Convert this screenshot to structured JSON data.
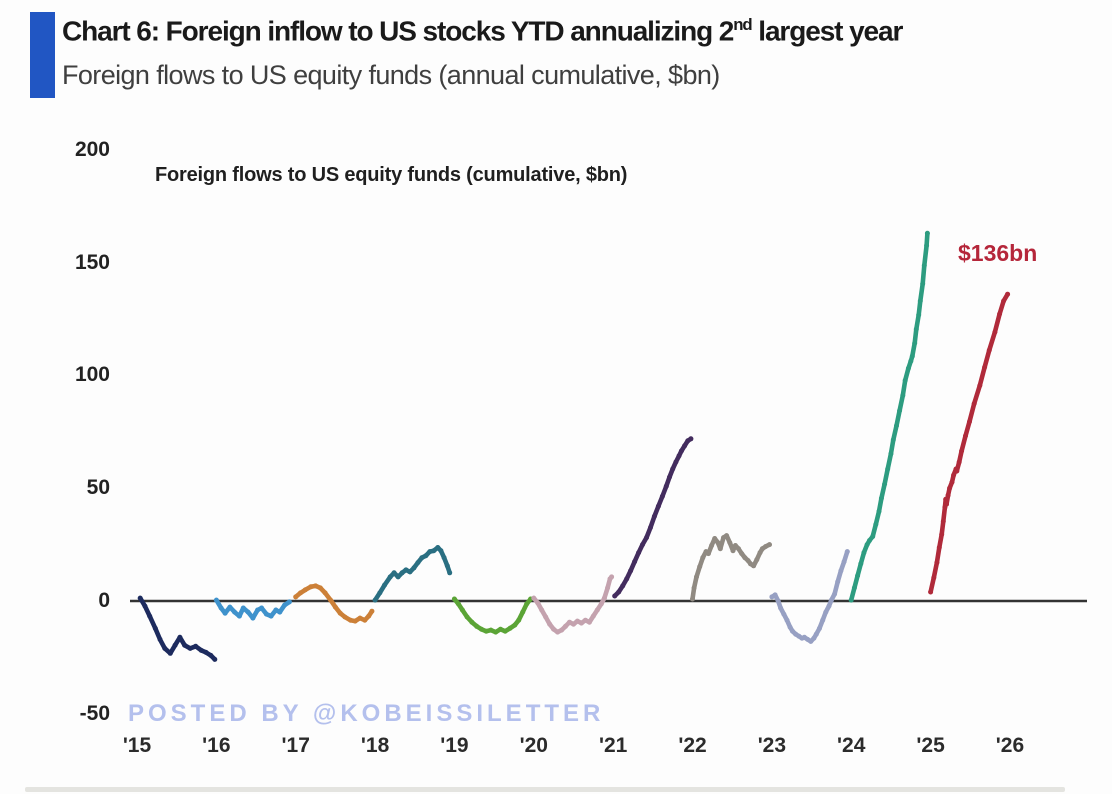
{
  "header": {
    "title_prefix": "Chart 6: Foreign inflow to US stocks YTD annualizing 2",
    "title_sup": "nd",
    "title_suffix": " largest year",
    "subtitle": "Foreign flows to US equity funds (annual cumulative, $bn)",
    "accent_color": "#2156c3"
  },
  "watermark": {
    "text": "POSTED BY @KOBEISSILETTER",
    "color": "#b4c0ed"
  },
  "chart_data": {
    "type": "line",
    "title": "Foreign flows to US equity funds (cumulative, $bn)",
    "xlabel": "",
    "ylabel": "",
    "ylim": [
      -50,
      200
    ],
    "yticks": [
      200,
      150,
      100,
      50,
      0,
      -50
    ],
    "x_tick_labels": [
      "'15",
      "'16",
      "'17",
      "'18",
      "'19",
      "'20",
      "'21",
      "'22",
      "'23",
      "'24",
      "'25",
      "'26"
    ],
    "grid": false,
    "legend_position": "none",
    "axis_line_color": "#333333",
    "annotation": {
      "text": "$136bn",
      "color": "#b5263a",
      "series": "2025"
    },
    "series": [
      {
        "name": "2015",
        "year": 2015,
        "color": "#1d2b5e",
        "points": [
          [
            0.04,
            1.3
          ],
          [
            0.1,
            -2.2
          ],
          [
            0.16,
            -6.7
          ],
          [
            0.23,
            -12.1
          ],
          [
            0.29,
            -17.0
          ],
          [
            0.35,
            -21.0
          ],
          [
            0.42,
            -23.2
          ],
          [
            0.48,
            -19.6
          ],
          [
            0.54,
            -16.1
          ],
          [
            0.6,
            -19.6
          ],
          [
            0.67,
            -21.0
          ],
          [
            0.74,
            -20.1
          ],
          [
            0.81,
            -21.9
          ],
          [
            0.87,
            -22.8
          ],
          [
            0.93,
            -24.1
          ],
          [
            0.98,
            -25.9
          ]
        ]
      },
      {
        "name": "2016",
        "year": 2016,
        "color": "#3f92cc",
        "points": [
          [
            0.0,
            0.4
          ],
          [
            0.06,
            -3.1
          ],
          [
            0.11,
            -5.4
          ],
          [
            0.17,
            -2.7
          ],
          [
            0.23,
            -4.9
          ],
          [
            0.29,
            -6.7
          ],
          [
            0.34,
            -3.1
          ],
          [
            0.4,
            -4.9
          ],
          [
            0.46,
            -7.6
          ],
          [
            0.52,
            -4.0
          ],
          [
            0.57,
            -3.1
          ],
          [
            0.63,
            -5.8
          ],
          [
            0.69,
            -6.7
          ],
          [
            0.75,
            -4.0
          ],
          [
            0.8,
            -4.9
          ],
          [
            0.86,
            -1.8
          ],
          [
            0.92,
            -0.4
          ]
        ]
      },
      {
        "name": "2017",
        "year": 2017,
        "color": "#cc8038",
        "points": [
          [
            0.0,
            1.8
          ],
          [
            0.06,
            3.6
          ],
          [
            0.12,
            4.9
          ],
          [
            0.19,
            6.3
          ],
          [
            0.25,
            6.7
          ],
          [
            0.31,
            5.8
          ],
          [
            0.37,
            3.6
          ],
          [
            0.44,
            0.4
          ],
          [
            0.5,
            -2.7
          ],
          [
            0.56,
            -5.4
          ],
          [
            0.62,
            -7.1
          ],
          [
            0.69,
            -8.5
          ],
          [
            0.75,
            -8.9
          ],
          [
            0.81,
            -7.6
          ],
          [
            0.87,
            -8.5
          ],
          [
            0.92,
            -6.7
          ],
          [
            0.96,
            -4.5
          ]
        ]
      },
      {
        "name": "2018",
        "year": 2018,
        "color": "#2a6f82",
        "points": [
          [
            0.0,
            0.4
          ],
          [
            0.06,
            3.6
          ],
          [
            0.12,
            7.1
          ],
          [
            0.19,
            10.7
          ],
          [
            0.24,
            12.5
          ],
          [
            0.29,
            10.7
          ],
          [
            0.34,
            12.5
          ],
          [
            0.39,
            13.8
          ],
          [
            0.44,
            12.9
          ],
          [
            0.49,
            14.7
          ],
          [
            0.54,
            17.0
          ],
          [
            0.59,
            19.2
          ],
          [
            0.64,
            20.1
          ],
          [
            0.69,
            21.9
          ],
          [
            0.74,
            22.3
          ],
          [
            0.79,
            23.7
          ],
          [
            0.83,
            22.3
          ],
          [
            0.87,
            19.2
          ],
          [
            0.91,
            15.6
          ],
          [
            0.94,
            12.5
          ]
        ]
      },
      {
        "name": "2019",
        "year": 2019,
        "color": "#5ba436",
        "points": [
          [
            0.0,
            0.9
          ],
          [
            0.05,
            -1.3
          ],
          [
            0.1,
            -4.0
          ],
          [
            0.16,
            -7.1
          ],
          [
            0.22,
            -9.4
          ],
          [
            0.28,
            -11.2
          ],
          [
            0.34,
            -12.5
          ],
          [
            0.4,
            -13.4
          ],
          [
            0.46,
            -12.9
          ],
          [
            0.52,
            -13.8
          ],
          [
            0.58,
            -12.5
          ],
          [
            0.64,
            -13.4
          ],
          [
            0.7,
            -12.1
          ],
          [
            0.76,
            -10.7
          ],
          [
            0.81,
            -8.5
          ],
          [
            0.86,
            -4.9
          ],
          [
            0.91,
            -1.3
          ],
          [
            0.96,
            0.9
          ]
        ]
      },
      {
        "name": "2020",
        "year": 2020,
        "color": "#c4a2ae",
        "points": [
          [
            0.0,
            1.3
          ],
          [
            0.05,
            -0.9
          ],
          [
            0.1,
            -4.0
          ],
          [
            0.15,
            -7.1
          ],
          [
            0.2,
            -10.3
          ],
          [
            0.25,
            -12.5
          ],
          [
            0.3,
            -13.8
          ],
          [
            0.35,
            -12.9
          ],
          [
            0.4,
            -11.2
          ],
          [
            0.45,
            -9.4
          ],
          [
            0.5,
            -10.3
          ],
          [
            0.55,
            -8.9
          ],
          [
            0.6,
            -9.8
          ],
          [
            0.65,
            -8.5
          ],
          [
            0.7,
            -9.4
          ],
          [
            0.75,
            -6.7
          ],
          [
            0.8,
            -4.0
          ],
          [
            0.85,
            -1.3
          ],
          [
            0.89,
            1.3
          ],
          [
            0.93,
            5.8
          ],
          [
            0.96,
            9.8
          ],
          [
            0.98,
            10.7
          ]
        ]
      },
      {
        "name": "2021",
        "year": 2021,
        "color": "#432c5e",
        "points": [
          [
            0.02,
            2.2
          ],
          [
            0.07,
            4.0
          ],
          [
            0.12,
            6.7
          ],
          [
            0.17,
            9.8
          ],
          [
            0.22,
            13.4
          ],
          [
            0.27,
            17.4
          ],
          [
            0.32,
            21.4
          ],
          [
            0.37,
            25.0
          ],
          [
            0.42,
            28.1
          ],
          [
            0.47,
            32.6
          ],
          [
            0.52,
            37.5
          ],
          [
            0.57,
            42.0
          ],
          [
            0.62,
            46.4
          ],
          [
            0.67,
            50.9
          ],
          [
            0.71,
            54.9
          ],
          [
            0.75,
            58.5
          ],
          [
            0.79,
            61.6
          ],
          [
            0.83,
            64.3
          ],
          [
            0.86,
            66.5
          ],
          [
            0.9,
            68.8
          ],
          [
            0.94,
            71.0
          ],
          [
            0.98,
            71.9
          ]
        ]
      },
      {
        "name": "2022",
        "year": 2022,
        "color": "#908a82",
        "points": [
          [
            0.0,
            0.9
          ],
          [
            0.02,
            5.8
          ],
          [
            0.05,
            10.7
          ],
          [
            0.09,
            15.2
          ],
          [
            0.13,
            19.2
          ],
          [
            0.17,
            21.9
          ],
          [
            0.2,
            21.0
          ],
          [
            0.24,
            24.6
          ],
          [
            0.28,
            27.7
          ],
          [
            0.32,
            25.9
          ],
          [
            0.35,
            23.2
          ],
          [
            0.39,
            28.1
          ],
          [
            0.43,
            29.0
          ],
          [
            0.47,
            25.9
          ],
          [
            0.51,
            22.3
          ],
          [
            0.54,
            24.6
          ],
          [
            0.58,
            23.2
          ],
          [
            0.62,
            21.0
          ],
          [
            0.66,
            19.2
          ],
          [
            0.7,
            17.9
          ],
          [
            0.73,
            16.5
          ],
          [
            0.77,
            15.6
          ],
          [
            0.81,
            18.3
          ],
          [
            0.85,
            21.4
          ],
          [
            0.88,
            23.2
          ],
          [
            0.92,
            24.1
          ],
          [
            0.97,
            25.0
          ]
        ]
      },
      {
        "name": "2023",
        "year": 2023,
        "color": "#97a0c3",
        "points": [
          [
            0.0,
            1.8
          ],
          [
            0.04,
            2.7
          ],
          [
            0.08,
            0.0
          ],
          [
            0.11,
            -3.1
          ],
          [
            0.15,
            -5.8
          ],
          [
            0.19,
            -8.5
          ],
          [
            0.23,
            -11.6
          ],
          [
            0.26,
            -13.4
          ],
          [
            0.3,
            -14.7
          ],
          [
            0.34,
            -15.6
          ],
          [
            0.38,
            -16.5
          ],
          [
            0.41,
            -16.1
          ],
          [
            0.45,
            -17.0
          ],
          [
            0.49,
            -17.9
          ],
          [
            0.53,
            -16.5
          ],
          [
            0.56,
            -14.7
          ],
          [
            0.6,
            -12.1
          ],
          [
            0.64,
            -8.5
          ],
          [
            0.68,
            -4.9
          ],
          [
            0.72,
            -2.2
          ],
          [
            0.75,
            0.4
          ],
          [
            0.79,
            3.1
          ],
          [
            0.83,
            8.5
          ],
          [
            0.87,
            13.4
          ],
          [
            0.91,
            17.4
          ],
          [
            0.95,
            21.9
          ]
        ]
      },
      {
        "name": "2024",
        "year": 2024,
        "color": "#2d9c80",
        "points": [
          [
            0.0,
            0.4
          ],
          [
            0.04,
            5.8
          ],
          [
            0.08,
            11.2
          ],
          [
            0.12,
            16.5
          ],
          [
            0.16,
            21.4
          ],
          [
            0.2,
            25.0
          ],
          [
            0.23,
            26.8
          ],
          [
            0.27,
            28.6
          ],
          [
            0.31,
            33.9
          ],
          [
            0.35,
            39.7
          ],
          [
            0.38,
            45.5
          ],
          [
            0.42,
            51.8
          ],
          [
            0.46,
            58.5
          ],
          [
            0.5,
            65.2
          ],
          [
            0.53,
            71.4
          ],
          [
            0.57,
            77.7
          ],
          [
            0.61,
            84.4
          ],
          [
            0.65,
            91.1
          ],
          [
            0.68,
            97.8
          ],
          [
            0.72,
            103.1
          ],
          [
            0.75,
            106.3
          ],
          [
            0.77,
            108.5
          ],
          [
            0.8,
            114.3
          ],
          [
            0.82,
            120.5
          ],
          [
            0.85,
            126.8
          ],
          [
            0.87,
            133.0
          ],
          [
            0.9,
            140.6
          ],
          [
            0.92,
            148.7
          ],
          [
            0.95,
            157.6
          ],
          [
            0.96,
            163.0
          ]
        ]
      },
      {
        "name": "2025",
        "year": 2025,
        "color": "#b02a3a",
        "points": [
          [
            0.0,
            4.0
          ],
          [
            0.04,
            10.3
          ],
          [
            0.08,
            17.0
          ],
          [
            0.11,
            23.7
          ],
          [
            0.14,
            29.5
          ],
          [
            0.16,
            35.3
          ],
          [
            0.18,
            41.5
          ],
          [
            0.19,
            45.1
          ],
          [
            0.2,
            42.9
          ],
          [
            0.22,
            46.9
          ],
          [
            0.24,
            50.0
          ],
          [
            0.27,
            52.7
          ],
          [
            0.29,
            55.8
          ],
          [
            0.32,
            58.5
          ],
          [
            0.33,
            57.6
          ],
          [
            0.36,
            61.6
          ],
          [
            0.39,
            66.5
          ],
          [
            0.44,
            73.2
          ],
          [
            0.49,
            79.5
          ],
          [
            0.55,
            87.5
          ],
          [
            0.62,
            95.5
          ],
          [
            0.68,
            103.6
          ],
          [
            0.74,
            111.2
          ],
          [
            0.81,
            119.2
          ],
          [
            0.87,
            127.2
          ],
          [
            0.92,
            133.0
          ],
          [
            0.97,
            136.0
          ]
        ]
      }
    ]
  }
}
